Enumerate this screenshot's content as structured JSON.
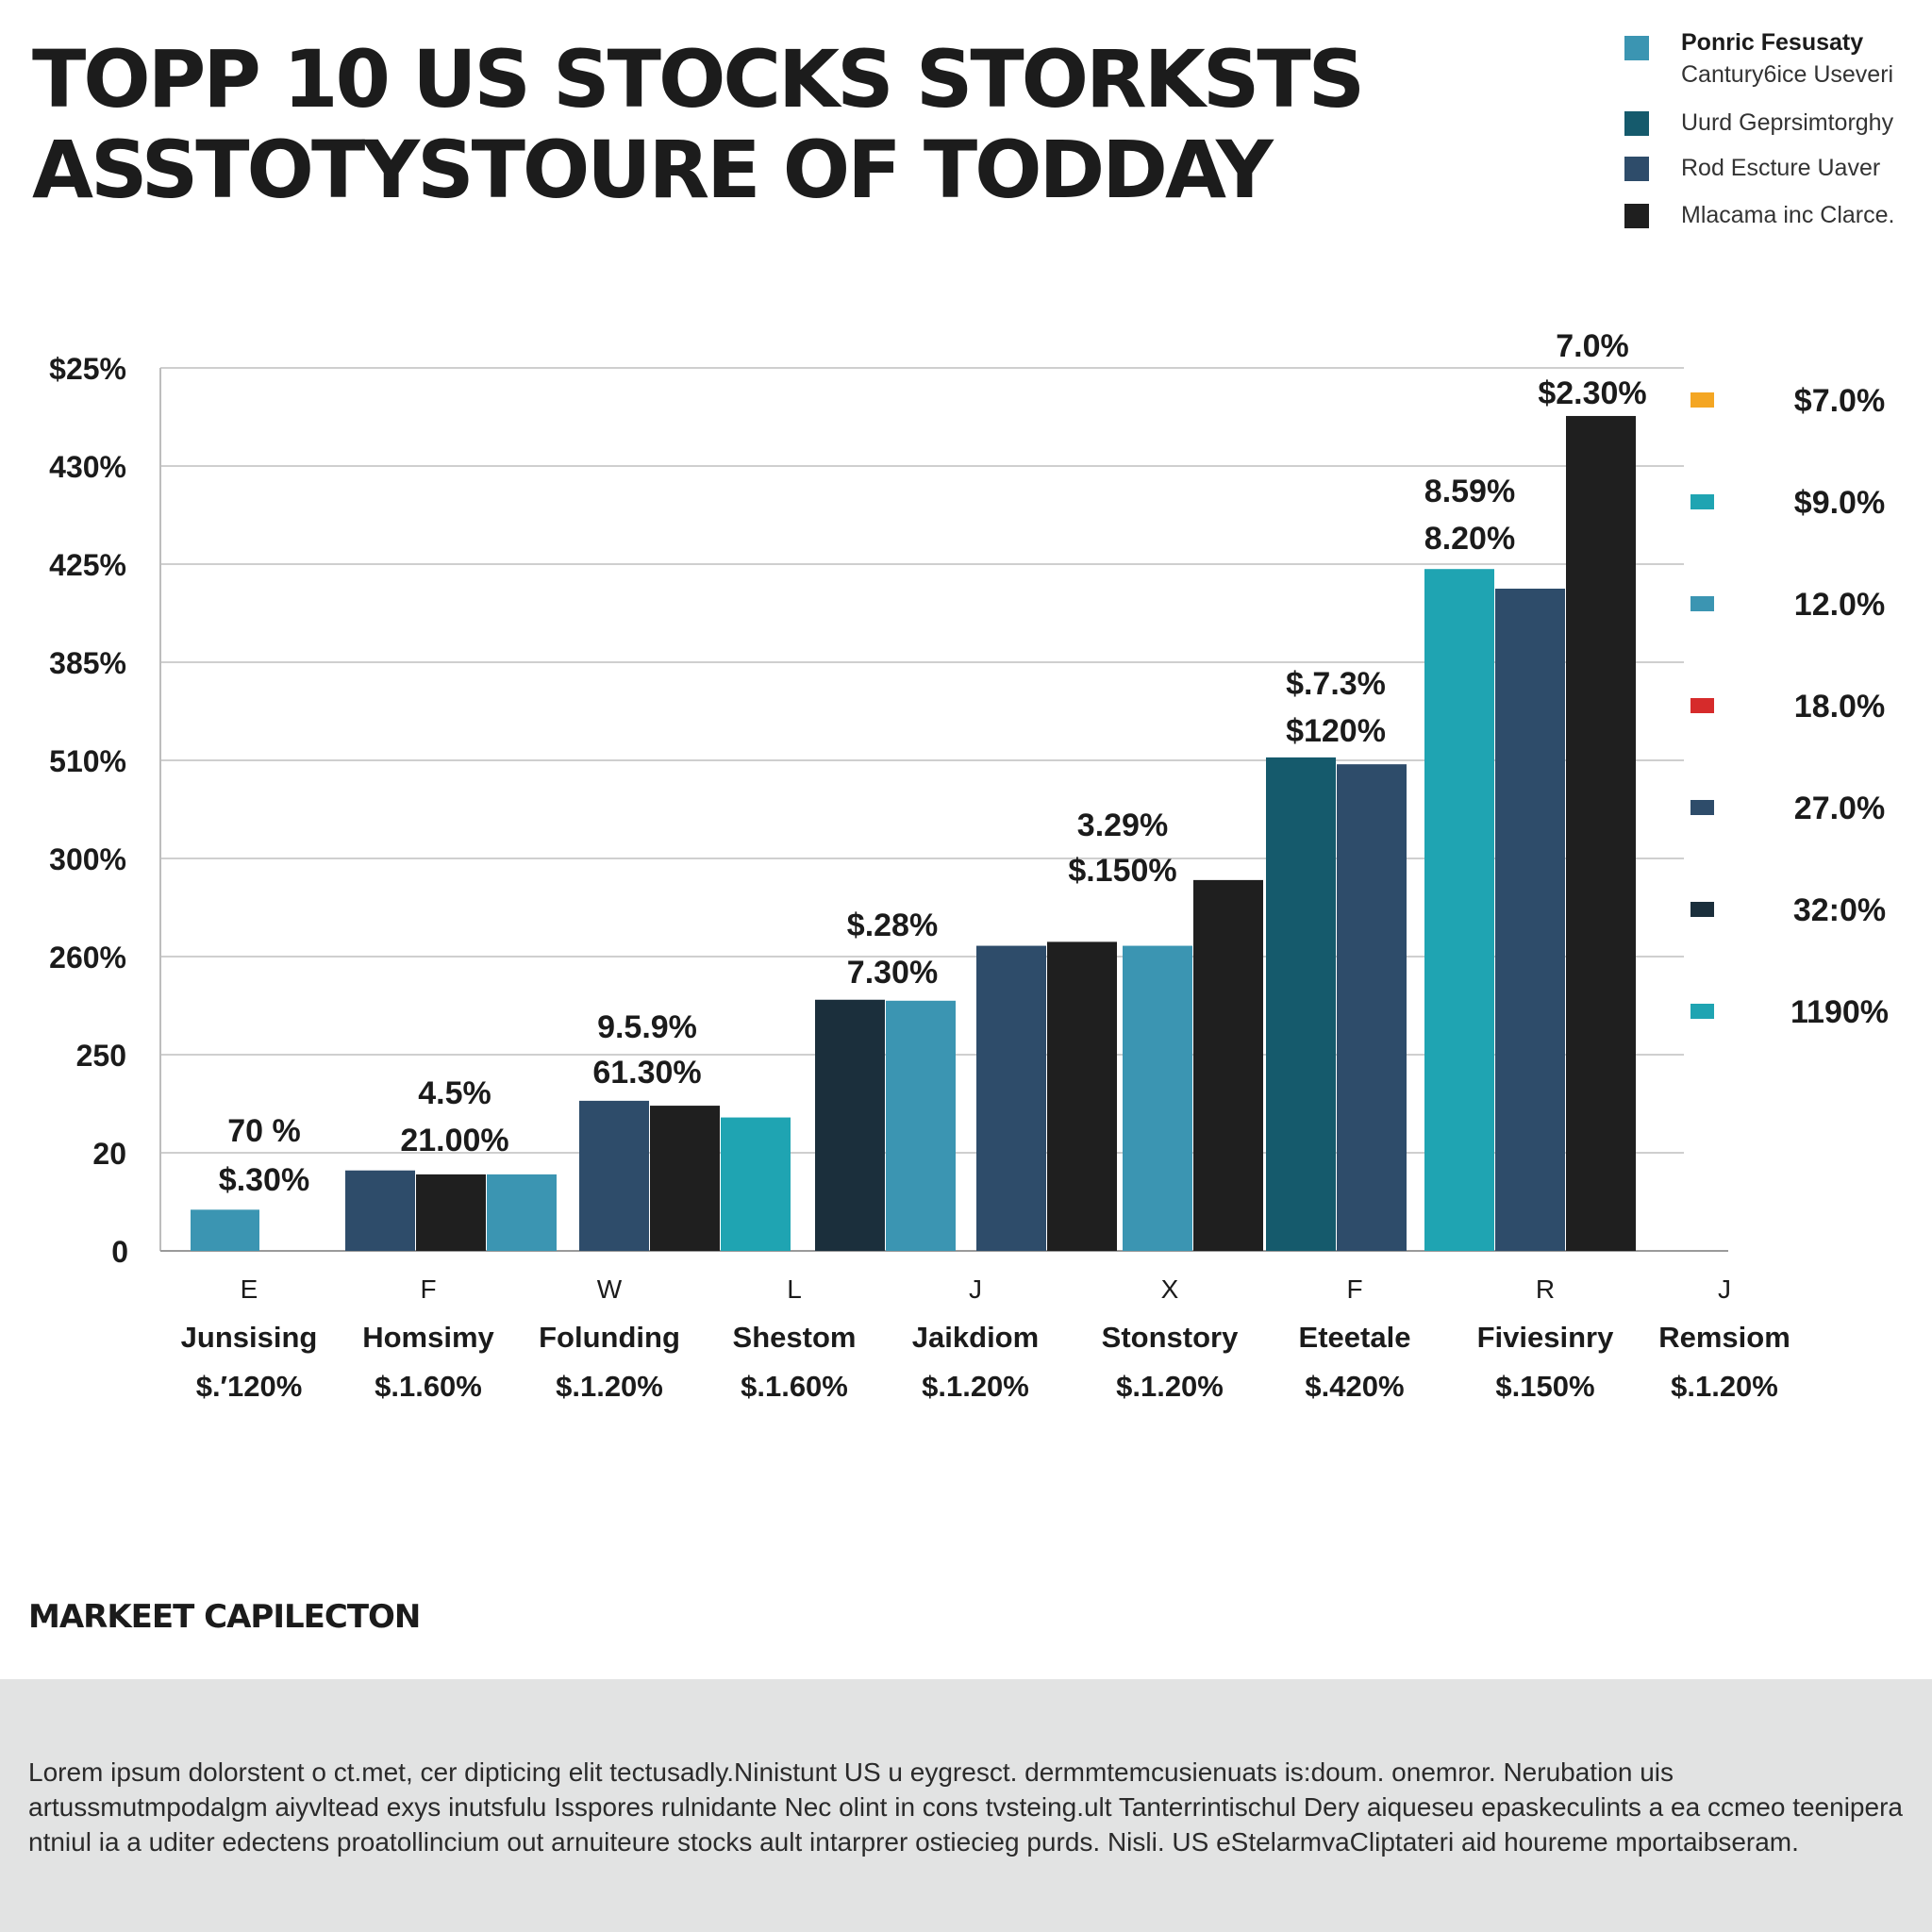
{
  "title": {
    "line1": "TOPP 10 US STOCKS STORKSTS",
    "line2": "ASSTOTYSTOURE OF TODDAY"
  },
  "top_legend": [
    {
      "label": "Ponric Fesusaty",
      "sub": "Cantury6ice Useveri",
      "color": "#3b95b2",
      "bold": true
    },
    {
      "label": "Uurd Geprsimtorghy",
      "color": "#155a6c"
    },
    {
      "label": "Rod Escture Uaver",
      "color": "#2e4c6a"
    },
    {
      "label": "Mlacama inc Clarce.",
      "color": "#1f1f1f"
    }
  ],
  "chart_data": {
    "type": "bar",
    "title": "TOPP 10 US STOCKS STORKSTS ASSTOTYSTOURE OF TODDAY",
    "y_tick_labels": [
      "0",
      "20",
      "250",
      "260%",
      "300%",
      "510%",
      "385%",
      "425%",
      "430%",
      "$25%"
    ],
    "ylim": [
      0,
      9
    ],
    "grid": true,
    "groups": [
      {
        "letter": "E",
        "name": "Junsising",
        "price": "$.′120%",
        "bars": [
          {
            "value": 0.42,
            "color": "#3b95b2"
          }
        ],
        "labels": [
          "70 %",
          "$.30%"
        ]
      },
      {
        "letter": "F",
        "name": "Homsimy",
        "price": "$.1.60%",
        "bars": [
          {
            "value": 0.82,
            "color": "#2e4c6a"
          },
          {
            "value": 0.78,
            "color": "#1f1f1f"
          },
          {
            "value": 0.78,
            "color": "#3b95b2"
          }
        ],
        "labels": [
          "4.5%",
          "21.00%"
        ]
      },
      {
        "letter": "W",
        "name": "Folunding",
        "price": "$.1.20%",
        "bars": [
          {
            "value": 1.53,
            "color": "#2e4c6a"
          },
          {
            "value": 1.48,
            "color": "#1f1f1f"
          },
          {
            "value": 1.36,
            "color": "#1fa4b2"
          }
        ],
        "labels": [
          "9.5.9%",
          "61.30%"
        ]
      },
      {
        "letter": "L",
        "name": "Shestom",
        "price": "$.1.60%",
        "bars": [
          {
            "value": 2.56,
            "color": "#1b2f3c"
          },
          {
            "value": 2.55,
            "color": "#3b95b2"
          }
        ],
        "labels": [
          "$.28%",
          "7.30%"
        ]
      },
      {
        "letter": "J",
        "name": "Jaikdiom",
        "price": "$.1.20%",
        "bars": [
          {
            "value": 3.11,
            "color": "#2e4c6a"
          },
          {
            "value": 3.15,
            "color": "#1f1f1f"
          }
        ],
        "labels": []
      },
      {
        "letter": "X",
        "name": "Stonstory",
        "price": "$.1.20%",
        "bars": [
          {
            "value": 3.11,
            "color": "#3b95b2"
          },
          {
            "value": 3.78,
            "color": "#1f1f1f"
          }
        ],
        "labels": [
          "3.29%",
          "$.150%"
        ]
      },
      {
        "letter": "F",
        "name": "Eteetale",
        "price": "$.420%",
        "bars": [
          {
            "value": 5.03,
            "color": "#155a6c"
          },
          {
            "value": 4.96,
            "color": "#2e4c6a"
          }
        ],
        "labels": [
          "$.7.3%",
          "$120%"
        ]
      },
      {
        "letter": "R",
        "name": "Fiviesinry",
        "price": "$.150%",
        "bars": [
          {
            "value": 6.95,
            "color": "#1fa4b2"
          },
          {
            "value": 6.75,
            "color": "#2e4c6a"
          },
          {
            "value": 8.51,
            "color": "#1f1f1f"
          }
        ],
        "labels": [
          "8.59%",
          "8.20%"
        ],
        "top_labels": [
          "7.0%",
          "$2.30%"
        ]
      },
      {
        "letter": "J",
        "name": "Remsiom",
        "price": "$.1.20%",
        "bars": [],
        "labels": []
      }
    ],
    "right_legend": [
      {
        "label": "$7.0%",
        "color": "#f4a623"
      },
      {
        "label": "$9.0%",
        "color": "#1fa4b2"
      },
      {
        "label": "12.0%",
        "color": "#3b95b2"
      },
      {
        "label": "18.0%",
        "color": "#d62b2b"
      },
      {
        "label": "27.0%",
        "color": "#2e4c6a"
      },
      {
        "label": "32:0%",
        "color": "#1b2f3c"
      },
      {
        "label": "1190%",
        "color": "#1fa4b2"
      }
    ]
  },
  "caption": "MARKEET CAPILECTON",
  "footer_text": "Lorem ipsum dolorstent o ct.met, cer dipticing elit tectusadly.Ninistunt US u eygresct. dermmtemcusienuats is:doum. onemror. Nerubation uis artussmutmpodalgm aiyvltead exys inutsfulu Isspores rulnidante Nec olint in cons tvsteing.ult Tanterrintischul Dery aiqueseu epaskeculints a ea ccmeo teenipera ntniul ia a uditer edectens proatollincium out arnuiteure stocks ault intarprer ostiecieg purds. Nisli. US eStelarmvaCliptateri aid houreme mportaibseram."
}
